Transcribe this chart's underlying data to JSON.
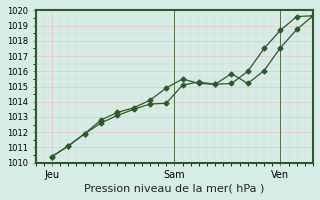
{
  "xlabel": "Pression niveau de la mer( hPa )",
  "bg_color": "#d6ece6",
  "grid_color_major": "#e8c8c8",
  "grid_color_minor": "#e8c8c8",
  "plot_bg_color": "#d6ece6",
  "line_color": "#2d5a27",
  "border_color": "#2d5a27",
  "ylim": [
    1010,
    1020
  ],
  "yticks": [
    1010,
    1011,
    1012,
    1013,
    1014,
    1015,
    1016,
    1017,
    1018,
    1019,
    1020
  ],
  "xlim": [
    0,
    34
  ],
  "xtick_positions": [
    2,
    17,
    30
  ],
  "xtick_labels": [
    "Jeu",
    "Sam",
    "Ven"
  ],
  "vline_positions": [
    17,
    30
  ],
  "series1_x": [
    2,
    4,
    6,
    8,
    10,
    12,
    14,
    16,
    18,
    20,
    22,
    24,
    26,
    28,
    30,
    32,
    34
  ],
  "series1_y": [
    1010.4,
    1011.1,
    1011.9,
    1012.8,
    1013.3,
    1013.6,
    1014.1,
    1014.9,
    1015.5,
    1015.2,
    1015.15,
    1015.85,
    1015.2,
    1016.05,
    1017.55,
    1018.75,
    1019.65
  ],
  "series2_x": [
    2,
    4,
    6,
    8,
    10,
    12,
    14,
    16,
    18,
    20,
    22,
    24,
    26,
    28,
    30,
    32,
    34
  ],
  "series2_y": [
    1010.4,
    1011.1,
    1011.9,
    1012.6,
    1013.1,
    1013.5,
    1013.85,
    1013.9,
    1015.1,
    1015.3,
    1015.15,
    1015.2,
    1016.0,
    1017.5,
    1018.7,
    1019.6,
    1019.65
  ],
  "marker": "D",
  "marker_size": 2.5,
  "line_width": 0.9,
  "tick_fontsize": 6,
  "xlabel_fontsize": 8
}
